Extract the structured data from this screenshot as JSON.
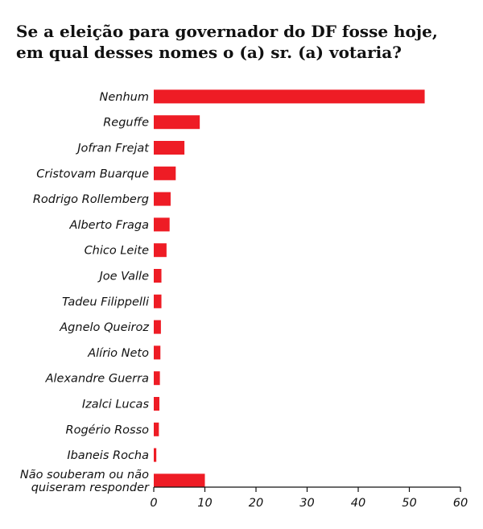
{
  "chart_data": {
    "type": "bar",
    "orientation": "horizontal",
    "title_lines": [
      "Se a eleição para governador do DF fosse hoje,",
      "em qual desses nomes o (a) sr. (a) votaria?"
    ],
    "categories": [
      [
        "Nenhum"
      ],
      [
        "Reguffe"
      ],
      [
        "Jofran Frejat"
      ],
      [
        "Cristovam Buarque"
      ],
      [
        "Rodrigo Rollemberg"
      ],
      [
        "Alberto Fraga"
      ],
      [
        "Chico Leite"
      ],
      [
        "Joe Valle"
      ],
      [
        "Tadeu Filippelli"
      ],
      [
        "Agnelo Queiroz"
      ],
      [
        "Alírio Neto"
      ],
      [
        "Alexandre Guerra"
      ],
      [
        "Izalci Lucas"
      ],
      [
        "Rogério Rosso"
      ],
      [
        "Ibaneis Rocha"
      ],
      [
        "Não souberam ou não",
        "quiseram responder"
      ]
    ],
    "values": [
      53,
      9,
      6,
      4.3,
      3.3,
      3.1,
      2.5,
      1.5,
      1.5,
      1.4,
      1.3,
      1.2,
      1.1,
      1,
      0.5,
      10
    ],
    "xlim": [
      0,
      60
    ],
    "xticks": [
      0,
      10,
      20,
      30,
      40,
      50,
      60
    ],
    "grid": false,
    "bar_color": "#ee1c25"
  }
}
